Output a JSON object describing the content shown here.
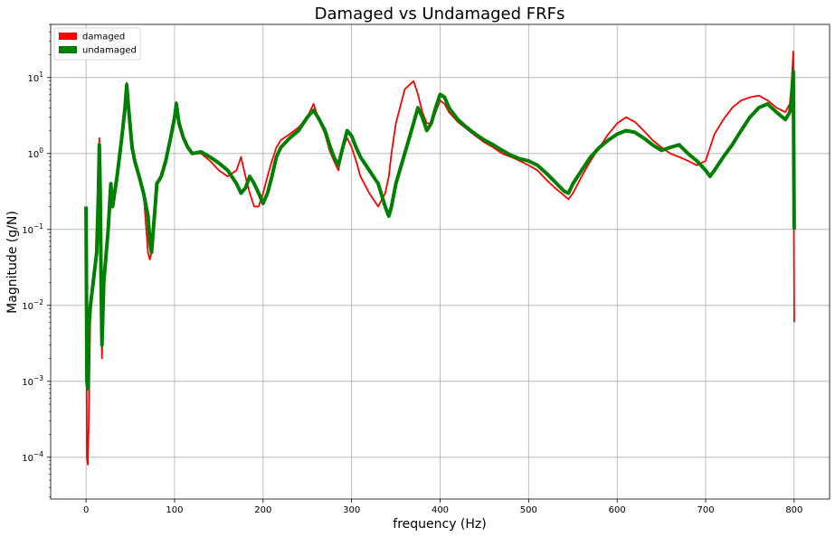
{
  "chart_data": {
    "type": "line",
    "title": "Damaged vs Undamaged FRFs",
    "xlabel": "frequency (Hz)",
    "ylabel": "Magnitude (g/N)",
    "xlim": [
      -40,
      840
    ],
    "ylim_log10": [
      -4.55,
      1.7
    ],
    "yscale": "log",
    "grid": true,
    "legend_position": "top-left",
    "x_ticks": [
      {
        "value": 0,
        "label": "0"
      },
      {
        "value": 100,
        "label": "100"
      },
      {
        "value": 200,
        "label": "200"
      },
      {
        "value": 300,
        "label": "300"
      },
      {
        "value": 400,
        "label": "400"
      },
      {
        "value": 500,
        "label": "500"
      },
      {
        "value": 600,
        "label": "600"
      },
      {
        "value": 700,
        "label": "700"
      },
      {
        "value": 800,
        "label": "800"
      }
    ],
    "y_ticks": [
      {
        "exp": -4,
        "base": "10",
        "sup": "−4"
      },
      {
        "exp": -3,
        "base": "10",
        "sup": "−3"
      },
      {
        "exp": -2,
        "base": "10",
        "sup": "−2"
      },
      {
        "exp": -1,
        "base": "10",
        "sup": "−1"
      },
      {
        "exp": 0,
        "base": "10",
        "sup": "0"
      },
      {
        "exp": 1,
        "base": "10",
        "sup": "1"
      }
    ],
    "series": [
      {
        "name": "undamaged",
        "color": "#008000",
        "x": [
          0,
          1,
          2,
          3,
          5,
          8,
          12,
          14,
          15,
          16,
          17,
          18,
          20,
          25,
          28,
          30,
          35,
          40,
          44,
          46,
          48,
          52,
          55,
          60,
          65,
          70,
          72,
          74,
          76,
          78,
          80,
          85,
          90,
          95,
          100,
          102,
          105,
          110,
          115,
          120,
          130,
          140,
          150,
          160,
          170,
          175,
          180,
          185,
          190,
          195,
          200,
          205,
          210,
          215,
          220,
          230,
          240,
          250,
          257,
          262,
          270,
          275,
          280,
          285,
          290,
          295,
          300,
          305,
          310,
          320,
          330,
          338,
          342,
          345,
          350,
          360,
          370,
          375,
          380,
          385,
          390,
          395,
          400,
          405,
          410,
          420,
          430,
          440,
          450,
          460,
          470,
          480,
          490,
          500,
          510,
          520,
          530,
          540,
          545,
          550,
          560,
          570,
          580,
          590,
          600,
          610,
          620,
          630,
          640,
          650,
          660,
          670,
          680,
          690,
          700,
          705,
          710,
          720,
          730,
          740,
          750,
          760,
          770,
          780,
          790,
          795,
          797,
          799,
          800
        ],
        "y": [
          0.2,
          0.001,
          0.0008,
          0.005,
          0.01,
          0.02,
          0.05,
          0.3,
          1.3,
          0.3,
          0.02,
          0.003,
          0.02,
          0.1,
          0.4,
          0.2,
          0.5,
          1.5,
          4.0,
          8.0,
          4.0,
          1.2,
          0.8,
          0.5,
          0.3,
          0.15,
          0.07,
          0.05,
          0.1,
          0.2,
          0.4,
          0.5,
          0.8,
          1.5,
          3.0,
          4.5,
          2.5,
          1.6,
          1.2,
          1.0,
          1.05,
          0.9,
          0.75,
          0.6,
          0.4,
          0.3,
          0.35,
          0.5,
          0.4,
          0.3,
          0.22,
          0.3,
          0.5,
          0.9,
          1.2,
          1.6,
          2.0,
          3.0,
          3.7,
          3.0,
          2.0,
          1.3,
          0.9,
          0.7,
          1.2,
          2.0,
          1.7,
          1.2,
          0.9,
          0.6,
          0.4,
          0.2,
          0.15,
          0.2,
          0.4,
          1.0,
          2.5,
          4.0,
          3.0,
          2.0,
          2.5,
          4.0,
          6.0,
          5.5,
          4.0,
          2.8,
          2.2,
          1.8,
          1.5,
          1.3,
          1.1,
          0.95,
          0.85,
          0.8,
          0.7,
          0.55,
          0.42,
          0.32,
          0.3,
          0.4,
          0.6,
          0.9,
          1.2,
          1.5,
          1.8,
          2.0,
          1.9,
          1.6,
          1.3,
          1.1,
          1.2,
          1.3,
          1.0,
          0.8,
          0.6,
          0.5,
          0.6,
          0.9,
          1.3,
          2.0,
          3.0,
          4.0,
          4.5,
          3.5,
          2.8,
          3.5,
          5.0,
          12.0,
          0.1
        ]
      },
      {
        "name": "damaged",
        "color": "#ff0000",
        "x": [
          0,
          1,
          2,
          3,
          5,
          8,
          12,
          14,
          15,
          16,
          17,
          18,
          20,
          25,
          28,
          30,
          35,
          40,
          44,
          46,
          48,
          52,
          55,
          60,
          65,
          70,
          72,
          74,
          76,
          78,
          80,
          85,
          90,
          95,
          100,
          102,
          105,
          110,
          115,
          120,
          130,
          140,
          150,
          160,
          170,
          175,
          180,
          185,
          190,
          195,
          200,
          205,
          210,
          215,
          220,
          230,
          240,
          250,
          257,
          262,
          270,
          275,
          280,
          285,
          290,
          295,
          300,
          305,
          310,
          320,
          330,
          338,
          342,
          345,
          350,
          360,
          370,
          375,
          380,
          385,
          390,
          395,
          400,
          405,
          410,
          420,
          430,
          440,
          450,
          460,
          470,
          480,
          490,
          500,
          510,
          520,
          530,
          540,
          545,
          550,
          560,
          570,
          580,
          590,
          600,
          610,
          620,
          630,
          640,
          650,
          660,
          670,
          680,
          690,
          700,
          705,
          710,
          720,
          730,
          740,
          750,
          760,
          770,
          780,
          790,
          795,
          797,
          799,
          800
        ],
        "y": [
          0.08,
          0.0001,
          8e-05,
          0.0003,
          0.01,
          0.02,
          0.05,
          0.6,
          1.6,
          0.4,
          0.01,
          0.002,
          0.02,
          0.1,
          0.4,
          0.2,
          0.5,
          1.5,
          4.0,
          8.5,
          4.0,
          1.2,
          0.8,
          0.5,
          0.3,
          0.05,
          0.04,
          0.05,
          0.1,
          0.2,
          0.4,
          0.5,
          0.8,
          1.5,
          3.0,
          4.8,
          2.5,
          1.6,
          1.2,
          1.0,
          1.0,
          0.8,
          0.6,
          0.5,
          0.6,
          0.9,
          0.5,
          0.3,
          0.2,
          0.2,
          0.3,
          0.5,
          0.8,
          1.2,
          1.5,
          1.8,
          2.2,
          3.0,
          4.5,
          3.0,
          1.8,
          1.1,
          0.8,
          0.6,
          1.2,
          1.6,
          1.2,
          0.8,
          0.5,
          0.3,
          0.2,
          0.3,
          0.5,
          1.0,
          2.5,
          7.0,
          9.0,
          6.0,
          3.5,
          2.5,
          2.5,
          3.5,
          5.0,
          4.5,
          3.5,
          2.6,
          2.1,
          1.7,
          1.4,
          1.2,
          1.0,
          0.9,
          0.8,
          0.7,
          0.6,
          0.45,
          0.35,
          0.28,
          0.25,
          0.3,
          0.5,
          0.8,
          1.2,
          1.8,
          2.5,
          3.0,
          2.6,
          2.0,
          1.5,
          1.2,
          1.0,
          0.9,
          0.8,
          0.7,
          0.8,
          1.2,
          1.8,
          2.8,
          4.0,
          5.0,
          5.5,
          5.8,
          5.0,
          4.0,
          3.5,
          4.5,
          8.0,
          22.0,
          0.006
        ]
      }
    ]
  }
}
